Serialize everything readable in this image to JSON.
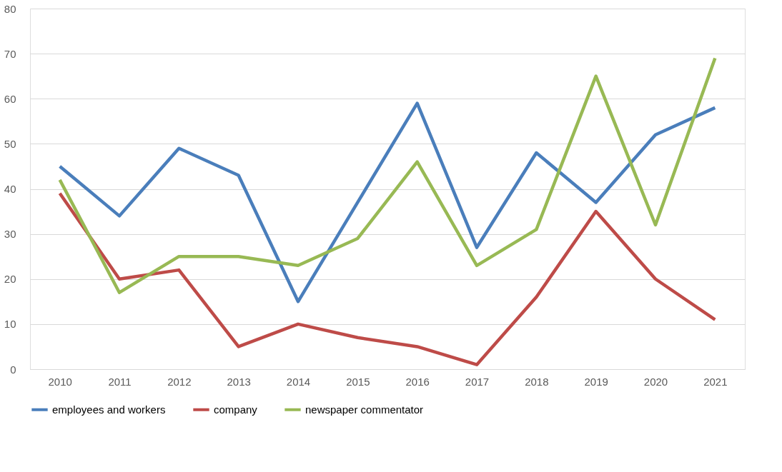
{
  "chart_data": {
    "type": "line",
    "categories": [
      "2010",
      "2011",
      "2012",
      "2013",
      "2014",
      "2015",
      "2016",
      "2017",
      "2018",
      "2019",
      "2020",
      "2021"
    ],
    "series": [
      {
        "name": "employees and workers",
        "color": "#4a7ebb",
        "values": [
          45,
          34,
          49,
          43,
          15,
          37,
          59,
          27,
          48,
          37,
          52,
          58
        ]
      },
      {
        "name": "company",
        "color": "#be4b48",
        "values": [
          39,
          20,
          22,
          5,
          10,
          7,
          5,
          1,
          16,
          35,
          20,
          11
        ]
      },
      {
        "name": "newspaper commentator",
        "color": "#98b954",
        "values": [
          42,
          17,
          25,
          25,
          23,
          29,
          46,
          23,
          31,
          65,
          32,
          69
        ]
      }
    ],
    "ylim": [
      0,
      80
    ],
    "yticks": [
      0,
      10,
      20,
      30,
      40,
      50,
      60,
      70,
      80
    ],
    "grid": "y",
    "legend": "bottom",
    "marker": "none",
    "line_style": "solid"
  }
}
